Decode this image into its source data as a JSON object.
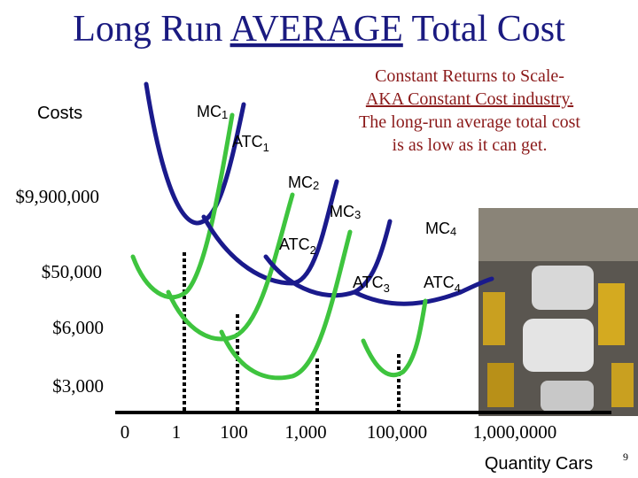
{
  "title": {
    "before": "Long Run ",
    "emphasis": "AVERAGE",
    "after": " Total Cost"
  },
  "note": [
    "Constant Returns to Scale-",
    "AKA Constant Cost industry.",
    "The long-run average total cost",
    "is as low as it can get."
  ],
  "y_axis_label": "Costs",
  "y_labels": [
    "$9,900,000",
    "$50,000",
    "$6,000",
    "$3,000"
  ],
  "x_labels": [
    "0",
    "1",
    "100",
    "1,000",
    "100,000",
    "1,000,0000"
  ],
  "x_axis_label": "Quantity Cars",
  "page_number": "9",
  "curve_labels": [
    {
      "base": "MC",
      "sub": "1"
    },
    {
      "base": "ATC",
      "sub": "1"
    },
    {
      "base": "MC",
      "sub": "2"
    },
    {
      "base": "ATC",
      "sub": "2"
    },
    {
      "base": "MC",
      "sub": "3"
    },
    {
      "base": "ATC",
      "sub": "3"
    },
    {
      "base": "MC",
      "sub": "4"
    },
    {
      "base": "ATC",
      "sub": "4"
    }
  ]
}
